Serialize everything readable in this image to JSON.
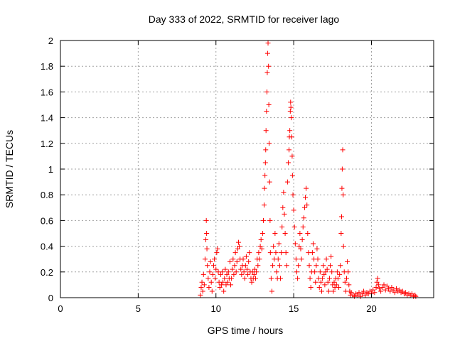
{
  "chart_data": {
    "type": "scatter",
    "title": "Day 333 of 2022, SRMTID for receiver lago",
    "xlabel": "GPS time / hours",
    "ylabel": "SRMTID / TECUs",
    "xlim": [
      0,
      24
    ],
    "ylim": [
      0,
      2
    ],
    "x_ticks": [
      0,
      5,
      10,
      15,
      20
    ],
    "y_ticks": [
      0,
      0.2,
      0.4,
      0.6,
      0.8,
      1,
      1.2,
      1.4,
      1.6,
      1.8,
      2
    ],
    "x_tick_labels": [
      "0",
      "5",
      "10",
      "15",
      "20"
    ],
    "y_tick_labels": [
      "0",
      "0.2",
      "0.4",
      "0.6",
      "0.8",
      "1",
      "1.2",
      "1.4",
      "1.6",
      "1.8",
      "2"
    ],
    "grid": true,
    "marker": "+",
    "series": [
      {
        "name": "SRMTID",
        "color": "#ff0000",
        "points": [
          [
            9.0,
            0.02
          ],
          [
            9.05,
            0.08
          ],
          [
            9.1,
            0.12
          ],
          [
            9.15,
            0.05
          ],
          [
            9.2,
            0.18
          ],
          [
            9.25,
            0.1
          ],
          [
            9.3,
            0.3
          ],
          [
            9.35,
            0.45
          ],
          [
            9.38,
            0.6
          ],
          [
            9.4,
            0.5
          ],
          [
            9.42,
            0.38
          ],
          [
            9.45,
            0.25
          ],
          [
            9.5,
            0.15
          ],
          [
            9.55,
            0.08
          ],
          [
            9.6,
            0.2
          ],
          [
            9.65,
            0.28
          ],
          [
            9.7,
            0.12
          ],
          [
            9.75,
            0.05
          ],
          [
            9.8,
            0.18
          ],
          [
            9.85,
            0.25
          ],
          [
            9.9,
            0.3
          ],
          [
            9.95,
            0.15
          ],
          [
            10.0,
            0.22
          ],
          [
            10.05,
            0.35
          ],
          [
            10.1,
            0.38
          ],
          [
            10.15,
            0.2
          ],
          [
            10.2,
            0.12
          ],
          [
            10.25,
            0.08
          ],
          [
            10.3,
            0.18
          ],
          [
            10.35,
            0.1
          ],
          [
            10.4,
            0.2
          ],
          [
            10.45,
            0.12
          ],
          [
            10.5,
            0.05
          ],
          [
            10.55,
            0.15
          ],
          [
            10.6,
            0.22
          ],
          [
            10.65,
            0.1
          ],
          [
            10.7,
            0.18
          ],
          [
            10.75,
            0.12
          ],
          [
            10.8,
            0.2
          ],
          [
            10.85,
            0.15
          ],
          [
            10.9,
            0.28
          ],
          [
            10.95,
            0.1
          ],
          [
            11.0,
            0.15
          ],
          [
            11.05,
            0.22
          ],
          [
            11.1,
            0.3
          ],
          [
            11.15,
            0.18
          ],
          [
            11.2,
            0.25
          ],
          [
            11.25,
            0.35
          ],
          [
            11.3,
            0.2
          ],
          [
            11.35,
            0.28
          ],
          [
            11.4,
            0.38
          ],
          [
            11.45,
            0.43
          ],
          [
            11.5,
            0.4
          ],
          [
            11.55,
            0.3
          ],
          [
            11.6,
            0.22
          ],
          [
            11.65,
            0.18
          ],
          [
            11.7,
            0.25
          ],
          [
            11.75,
            0.3
          ],
          [
            11.8,
            0.2
          ],
          [
            11.85,
            0.15
          ],
          [
            11.9,
            0.25
          ],
          [
            11.95,
            0.32
          ],
          [
            12.0,
            0.22
          ],
          [
            12.05,
            0.18
          ],
          [
            12.1,
            0.28
          ],
          [
            12.15,
            0.35
          ],
          [
            12.2,
            0.2
          ],
          [
            12.25,
            0.15
          ],
          [
            12.3,
            0.12
          ],
          [
            12.35,
            0.2
          ],
          [
            12.4,
            0.15
          ],
          [
            12.45,
            0.18
          ],
          [
            12.5,
            0.22
          ],
          [
            12.55,
            0.15
          ],
          [
            12.6,
            0.2
          ],
          [
            12.65,
            0.3
          ],
          [
            12.7,
            0.25
          ],
          [
            12.75,
            0.35
          ],
          [
            12.8,
            0.3
          ],
          [
            12.85,
            0.4
          ],
          [
            12.9,
            0.45
          ],
          [
            12.95,
            0.38
          ],
          [
            13.0,
            0.5
          ],
          [
            13.05,
            0.6
          ],
          [
            13.1,
            0.72
          ],
          [
            13.12,
            0.85
          ],
          [
            13.15,
            0.95
          ],
          [
            13.18,
            1.05
          ],
          [
            13.2,
            1.15
          ],
          [
            13.22,
            1.3
          ],
          [
            13.25,
            1.45
          ],
          [
            13.28,
            1.6
          ],
          [
            13.3,
            1.75
          ],
          [
            13.32,
            1.9
          ],
          [
            13.35,
            1.98
          ],
          [
            13.38,
            1.8
          ],
          [
            13.4,
            1.5
          ],
          [
            13.42,
            1.2
          ],
          [
            13.45,
            0.9
          ],
          [
            13.48,
            0.6
          ],
          [
            13.5,
            0.35
          ],
          [
            13.55,
            0.15
          ],
          [
            13.6,
            0.05
          ],
          [
            13.65,
            0.25
          ],
          [
            13.7,
            0.4
          ],
          [
            13.75,
            0.3
          ],
          [
            13.8,
            0.5
          ],
          [
            13.85,
            0.35
          ],
          [
            13.9,
            0.2
          ],
          [
            13.95,
            0.15
          ],
          [
            14.0,
            0.3
          ],
          [
            14.05,
            0.42
          ],
          [
            14.1,
            0.25
          ],
          [
            14.15,
            0.15
          ],
          [
            14.2,
            0.35
          ],
          [
            14.25,
            0.55
          ],
          [
            14.3,
            0.7
          ],
          [
            14.35,
            0.82
          ],
          [
            14.4,
            0.65
          ],
          [
            14.45,
            0.5
          ],
          [
            14.5,
            0.35
          ],
          [
            14.55,
            0.25
          ],
          [
            14.6,
            0.9
          ],
          [
            14.65,
            1.05
          ],
          [
            14.7,
            1.15
          ],
          [
            14.72,
            1.25
          ],
          [
            14.75,
            1.3
          ],
          [
            14.78,
            1.45
          ],
          [
            14.8,
            1.52
          ],
          [
            14.82,
            1.48
          ],
          [
            14.85,
            1.4
          ],
          [
            14.88,
            1.25
          ],
          [
            14.9,
            1.1
          ],
          [
            14.92,
            0.95
          ],
          [
            14.95,
            0.8
          ],
          [
            15.0,
            0.68
          ],
          [
            15.05,
            0.55
          ],
          [
            15.1,
            0.42
          ],
          [
            15.15,
            0.3
          ],
          [
            15.2,
            0.2
          ],
          [
            15.25,
            0.15
          ],
          [
            15.3,
            0.25
          ],
          [
            15.35,
            0.4
          ],
          [
            15.4,
            0.5
          ],
          [
            15.45,
            0.38
          ],
          [
            15.5,
            0.3
          ],
          [
            15.55,
            0.45
          ],
          [
            15.6,
            0.55
          ],
          [
            15.65,
            0.62
          ],
          [
            15.7,
            0.7
          ],
          [
            15.75,
            0.78
          ],
          [
            15.8,
            0.85
          ],
          [
            15.85,
            0.72
          ],
          [
            15.9,
            0.5
          ],
          [
            15.95,
            0.35
          ],
          [
            16.0,
            0.25
          ],
          [
            16.05,
            0.15
          ],
          [
            16.1,
            0.08
          ],
          [
            16.15,
            0.2
          ],
          [
            16.2,
            0.35
          ],
          [
            16.25,
            0.42
          ],
          [
            16.3,
            0.3
          ],
          [
            16.35,
            0.2
          ],
          [
            16.4,
            0.12
          ],
          [
            16.45,
            0.25
          ],
          [
            16.5,
            0.38
          ],
          [
            16.55,
            0.3
          ],
          [
            16.6,
            0.15
          ],
          [
            16.65,
            0.08
          ],
          [
            16.7,
            0.2
          ],
          [
            16.75,
            0.12
          ],
          [
            16.8,
            0.05
          ],
          [
            16.85,
            0.15
          ],
          [
            16.9,
            0.25
          ],
          [
            16.95,
            0.18
          ],
          [
            17.0,
            0.1
          ],
          [
            17.05,
            0.2
          ],
          [
            17.1,
            0.3
          ],
          [
            17.15,
            0.22
          ],
          [
            17.2,
            0.12
          ],
          [
            17.25,
            0.05
          ],
          [
            17.3,
            0.15
          ],
          [
            17.35,
            0.25
          ],
          [
            17.4,
            0.32
          ],
          [
            17.45,
            0.2
          ],
          [
            17.5,
            0.1
          ],
          [
            17.55,
            0.05
          ],
          [
            17.6,
            0.12
          ],
          [
            17.65,
            0.08
          ],
          [
            17.7,
            0.15
          ],
          [
            17.75,
            0.1
          ],
          [
            17.8,
            0.2
          ],
          [
            17.85,
            0.15
          ],
          [
            17.9,
            0.08
          ],
          [
            17.95,
            0.18
          ],
          [
            18.0,
            0.25
          ],
          [
            18.05,
            0.5
          ],
          [
            18.08,
            0.63
          ],
          [
            18.1,
            0.85
          ],
          [
            18.12,
            1.0
          ],
          [
            18.15,
            1.15
          ],
          [
            18.18,
            0.8
          ],
          [
            18.2,
            0.4
          ],
          [
            18.25,
            0.2
          ],
          [
            18.3,
            0.12
          ],
          [
            18.35,
            0.05
          ],
          [
            18.4,
            0.15
          ],
          [
            18.45,
            0.28
          ],
          [
            18.5,
            0.2
          ],
          [
            18.55,
            0.1
          ],
          [
            18.6,
            0.05
          ],
          [
            18.65,
            0.02
          ],
          [
            18.7,
            0.04
          ],
          [
            18.8,
            0.02
          ],
          [
            18.9,
            0.01
          ],
          [
            19.0,
            0.03
          ],
          [
            19.1,
            0.02
          ],
          [
            19.2,
            0.04
          ],
          [
            19.3,
            0.01
          ],
          [
            19.4,
            0.03
          ],
          [
            19.5,
            0.05
          ],
          [
            19.6,
            0.02
          ],
          [
            19.7,
            0.04
          ],
          [
            19.8,
            0.03
          ],
          [
            19.9,
            0.05
          ],
          [
            20.0,
            0.03
          ],
          [
            20.1,
            0.06
          ],
          [
            20.2,
            0.04
          ],
          [
            20.3,
            0.08
          ],
          [
            20.35,
            0.12
          ],
          [
            20.4,
            0.15
          ],
          [
            20.45,
            0.1
          ],
          [
            20.5,
            0.07
          ],
          [
            20.6,
            0.05
          ],
          [
            20.7,
            0.08
          ],
          [
            20.8,
            0.1
          ],
          [
            20.9,
            0.06
          ],
          [
            21.0,
            0.09
          ],
          [
            21.1,
            0.07
          ],
          [
            21.2,
            0.05
          ],
          [
            21.3,
            0.08
          ],
          [
            21.4,
            0.06
          ],
          [
            21.5,
            0.04
          ],
          [
            21.6,
            0.07
          ],
          [
            21.7,
            0.05
          ],
          [
            21.8,
            0.06
          ],
          [
            21.9,
            0.04
          ],
          [
            22.0,
            0.05
          ],
          [
            22.1,
            0.03
          ],
          [
            22.2,
            0.04
          ],
          [
            22.3,
            0.02
          ],
          [
            22.4,
            0.03
          ],
          [
            22.5,
            0.02
          ],
          [
            22.6,
            0.03
          ],
          [
            22.7,
            0.01
          ],
          [
            22.8,
            0.02
          ],
          [
            22.85,
            0.01
          ]
        ]
      }
    ]
  }
}
